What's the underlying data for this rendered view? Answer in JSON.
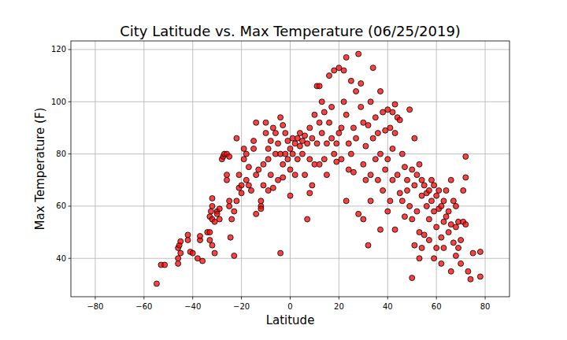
{
  "chart_data": {
    "type": "scatter",
    "title": "City Latitude vs. Max Temperature (06/25/2019)",
    "x_label": "Latitude",
    "y_label": "Max Temperature (F)",
    "color": "#ff0000",
    "marker": "circle",
    "grid": true,
    "xlim": [
      -90,
      90
    ],
    "ylim": [
      25.3,
      123.3
    ],
    "xticks": [
      -80,
      -60,
      -40,
      -20,
      0,
      20,
      40,
      60,
      80
    ],
    "yticks": [
      40,
      60,
      80,
      100,
      120
    ],
    "x": [
      -54.8,
      -53,
      -51.5,
      -46,
      -46,
      -46,
      -45.5,
      -45,
      -45,
      -42,
      -42,
      -41,
      -40,
      -38,
      -37,
      -37,
      -36,
      -34,
      -33,
      -33,
      -32,
      -32,
      -32,
      -32.5,
      -33,
      -32,
      -31,
      -31,
      -30,
      -30,
      -29,
      -29,
      -28,
      -27.5,
      -27,
      -26,
      -25,
      -26,
      -26,
      -25,
      -25,
      -24.5,
      -24,
      -23,
      -23,
      -22,
      -22,
      -21,
      -21,
      -20,
      -20,
      -19,
      -19,
      -18,
      -18,
      -17,
      -17,
      -16,
      -15,
      -15,
      -14,
      -14,
      -14,
      -13,
      -12,
      -12,
      -12,
      -11,
      -11,
      -10,
      -10,
      -9,
      -9,
      -9,
      -8,
      -8,
      -7,
      -7,
      -6,
      -6,
      -5,
      -5,
      -4,
      -4,
      -4,
      -3,
      -3,
      -3,
      -2,
      -2,
      -1,
      -1,
      0,
      0,
      0,
      1,
      1,
      2,
      2,
      3,
      3,
      4,
      4,
      5,
      5,
      6,
      6,
      7,
      7,
      8,
      8,
      8,
      9,
      9,
      10,
      10,
      11,
      11,
      12,
      12,
      12,
      13,
      13,
      14,
      14,
      15,
      15,
      16,
      16,
      17,
      17,
      18,
      18,
      19,
      19,
      20,
      20,
      21,
      21,
      22,
      22,
      23,
      23,
      23,
      24,
      24,
      25,
      25,
      26,
      26,
      27,
      27,
      28,
      28,
      29,
      29,
      30,
      30,
      30,
      31,
      31,
      32,
      32,
      33,
      33,
      33,
      34,
      34,
      35,
      35,
      36,
      36,
      37,
      37,
      37,
      38,
      38,
      39,
      39,
      40,
      40,
      40,
      41,
      41,
      42,
      42,
      42,
      43,
      43,
      43,
      44,
      44,
      45,
      45,
      46,
      46,
      47,
      47,
      48,
      48,
      49,
      49,
      50,
      50,
      50,
      51,
      51,
      51,
      52,
      52,
      53,
      53,
      53,
      54,
      54,
      54,
      55,
      55,
      56,
      56,
      57,
      57,
      57,
      58,
      58,
      59,
      59,
      59,
      60,
      60,
      60,
      61,
      61,
      62,
      62,
      62,
      63,
      63,
      63,
      64,
      64,
      65,
      65,
      66,
      66,
      66,
      67,
      67,
      68,
      68,
      68,
      69,
      69,
      70,
      70,
      71,
      71,
      72,
      72,
      72,
      73,
      74,
      75,
      78,
      78
    ],
    "values": [
      30.3,
      37.5,
      37.5,
      38,
      40,
      44,
      45,
      46.5,
      42,
      49,
      47,
      42.5,
      42,
      40,
      47,
      48.5,
      39,
      50,
      50,
      47,
      45,
      63,
      60,
      58,
      56,
      55,
      42,
      54,
      58,
      57,
      59,
      55,
      78,
      79,
      80,
      80,
      79,
      72,
      70,
      62,
      60,
      48,
      55,
      41,
      58,
      86,
      62,
      67,
      72,
      65,
      68,
      82,
      78,
      80,
      70,
      75,
      68,
      66,
      82,
      85,
      92,
      72,
      57,
      74,
      62,
      60,
      59,
      76,
      68,
      92,
      88,
      82,
      66,
      78,
      85,
      72,
      67,
      90,
      88,
      80,
      84,
      70,
      94,
      80,
      42,
      91,
      76,
      71,
      88,
      80,
      85,
      78,
      82,
      74,
      64,
      86,
      80,
      84,
      72,
      86,
      78,
      88,
      83,
      85,
      80,
      87,
      72,
      84,
      55,
      90,
      78,
      65,
      68,
      86,
      95,
      76,
      106,
      84,
      106,
      92,
      76,
      100,
      88,
      78,
      96,
      84,
      72,
      110,
      92,
      86,
      98,
      112,
      80,
      77,
      84,
      113,
      88,
      90,
      78,
      112,
      100,
      117,
      95,
      62,
      84,
      74,
      108,
      80,
      73,
      90,
      104,
      86,
      118.3,
      57,
      107,
      98,
      92,
      76,
      55,
      70,
      83,
      91,
      45,
      100,
      72,
      62,
      113,
      86,
      78,
      94,
      88,
      70,
      104,
      80,
      51,
      96,
      66,
      89,
      74,
      97,
      78,
      58,
      90,
      62,
      96,
      82,
      70,
      99,
      88,
      51,
      94,
      72,
      93,
      65,
      80,
      62,
      75,
      56,
      70,
      66,
      97,
      60,
      74,
      55,
      32.5,
      86,
      68,
      45,
      72,
      58,
      76,
      50,
      40,
      70,
      64,
      44,
      68,
      49,
      65,
      60,
      66,
      55,
      47,
      70,
      62,
      68,
      58,
      40,
      64,
      52,
      44,
      66,
      59,
      60,
      48,
      38,
      62,
      54,
      44,
      66,
      56,
      58,
      50,
      70,
      53,
      35,
      62,
      46,
      60,
      52,
      41,
      54,
      44,
      47,
      38,
      66,
      54,
      79,
      71,
      53,
      35,
      32,
      42,
      33,
      42.5
    ]
  }
}
